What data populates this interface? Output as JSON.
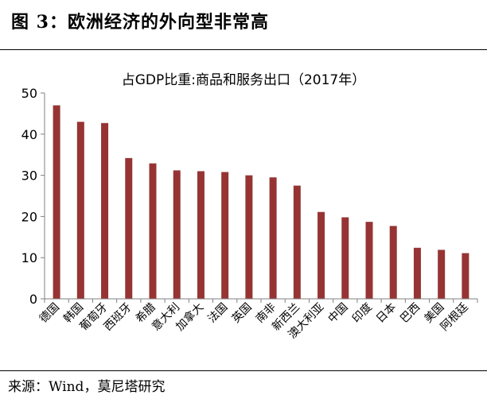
{
  "figure": {
    "title": "图 3：欧洲经济的外向型非常高",
    "source": "来源：Wind，莫尼塔研究"
  },
  "colors": {
    "bar": "#963434",
    "axis": "#808080",
    "text": "#000000"
  },
  "chart_data": {
    "type": "bar",
    "title": "占GDP比重:商品和服务出口（2017年）",
    "xlabel": "",
    "ylabel": "",
    "ylim": [
      0,
      50
    ],
    "yticks": [
      0,
      10,
      20,
      30,
      40,
      50
    ],
    "grid": false,
    "legend": "none",
    "categories": [
      "德国",
      "韩国",
      "葡萄牙",
      "西班牙",
      "希腊",
      "意大利",
      "加拿大",
      "法国",
      "英国",
      "南非",
      "新西兰",
      "澳大利亚",
      "中国",
      "印度",
      "日本",
      "巴西",
      "美国",
      "阿根廷"
    ],
    "values": [
      47.0,
      43.0,
      42.7,
      34.2,
      32.9,
      31.2,
      31.0,
      30.8,
      30.0,
      29.5,
      27.5,
      21.1,
      19.8,
      18.7,
      17.7,
      12.4,
      11.9,
      11.1
    ]
  }
}
